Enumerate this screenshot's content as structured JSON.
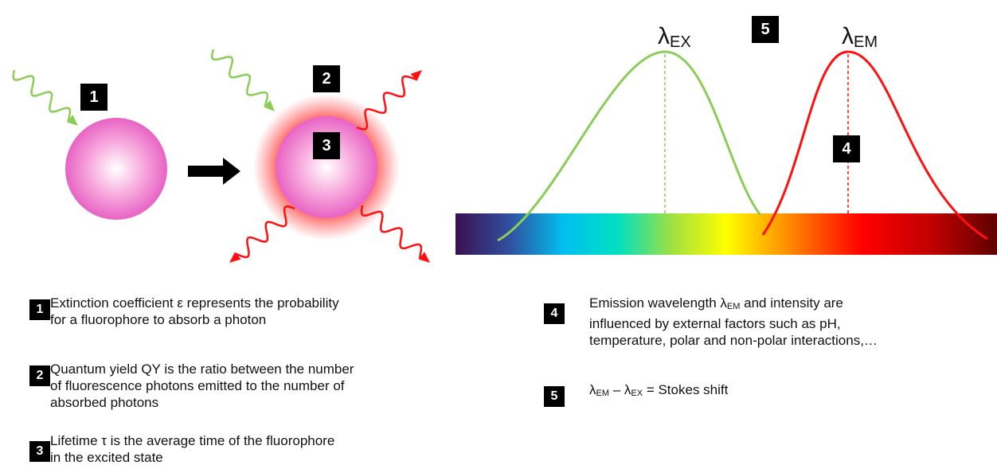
{
  "diagram": {
    "badges": [
      "1",
      "2",
      "3",
      "4",
      "5"
    ],
    "peaks": [
      [
        "λ",
        "EX"
      ],
      [
        "λ",
        "EM"
      ]
    ]
  },
  "legend": [
    {
      "number": "1",
      "lines": [
        [
          "Extinction coefficient ε represents the probability"
        ],
        [
          "for a fluorophore to absorb a photon"
        ]
      ]
    },
    {
      "number": "2",
      "lines": [
        [
          "Quantum yield QY is the ratio between the number"
        ],
        [
          "of fluorescence photons emitted to the number of"
        ],
        [
          "absorbed photons"
        ]
      ]
    },
    {
      "number": "3",
      "lines": [
        [
          "Lifetime τ is the average time of the fluorophore"
        ],
        [
          "in the excited state"
        ]
      ]
    },
    {
      "number": "4",
      "lines": [
        [
          "Emission wavelength λ",
          "EM",
          " and intensity are"
        ],
        [
          "influenced by external factors such as pH,"
        ],
        [
          "temperature, polar and non-polar interactions,…"
        ]
      ]
    },
    {
      "number": "5",
      "lines": [
        [
          "λ",
          "EM",
          " – λ",
          "EX",
          " = Stokes shift"
        ]
      ]
    }
  ]
}
